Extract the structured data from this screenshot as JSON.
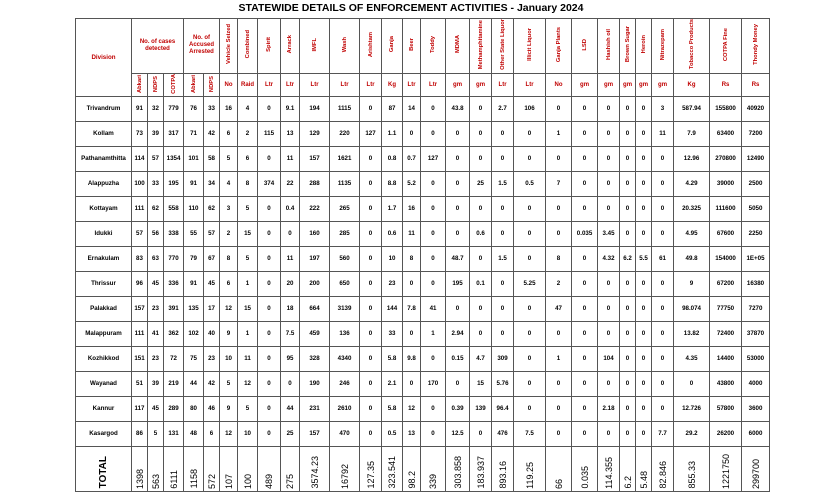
{
  "title": "STATEWIDE DETAILS OF ENFORCEMENT ACTIVITIES - January  2024",
  "headers": {
    "division": "Division",
    "cases": "No. of cases detected",
    "accused": "No. of Accused Arrested",
    "vehicle": "Vehicle Seized",
    "combined": "Combined",
    "spirit": "Spirit",
    "arrack": "Arrack",
    "imfl": "IMFL",
    "wash": "Wash",
    "arishtam": "Arishtam",
    "ganja": "Ganja",
    "beer": "Beer",
    "toddy": "Toddy",
    "mdma": "MDMA",
    "meth": "Methamphitamine",
    "otherstate": "Other State Liquor",
    "illicit": "Illicit Liquor",
    "ganjaplants": "Ganja Plants",
    "lsd": "LSD",
    "hashish": "Hashish oil",
    "brownsugar": "Brown Sugar",
    "heroin": "Heroin",
    "nitrazepam": "Nitrazepam",
    "tobacco": "Tobacco Products",
    "cotpafine": "COTPA Fine",
    "thondimoney": "Thondy Money",
    "abkari": "Abkari",
    "ndps": "NDPS",
    "cotpa": "COTPA"
  },
  "units": [
    "No",
    "Raid",
    "Ltr",
    "Ltr",
    "Ltr",
    "Ltr",
    "Ltr",
    "Kg",
    "Ltr",
    "Ltr",
    "gm",
    "gm",
    "Ltr",
    "Ltr",
    "No",
    "gm",
    "gm",
    "gm",
    "gm",
    "gm",
    "Kg",
    "Rs",
    "Rs"
  ],
  "rows": [
    {
      "division": "Trivandrum",
      "v": [
        "91",
        "32",
        "779",
        "76",
        "33",
        "16",
        "4",
        "0",
        "9.1",
        "194",
        "1115",
        "0",
        "87",
        "14",
        "0",
        "43.8",
        "0",
        "2.7",
        "106",
        "0",
        "0",
        "0",
        "0",
        "0",
        "3",
        "587.94",
        "155800",
        "40920"
      ]
    },
    {
      "division": "Kollam",
      "v": [
        "73",
        "39",
        "317",
        "71",
        "42",
        "6",
        "2",
        "115",
        "13",
        "129",
        "220",
        "127",
        "1.1",
        "0",
        "0",
        "0",
        "0",
        "0",
        "0",
        "1",
        "0",
        "0",
        "0",
        "0",
        "11",
        "7.9",
        "63400",
        "7200"
      ]
    },
    {
      "division": "Pathanamthitta",
      "v": [
        "114",
        "57",
        "1354",
        "101",
        "58",
        "5",
        "6",
        "0",
        "11",
        "157",
        "1621",
        "0",
        "0.8",
        "0.7",
        "127",
        "0",
        "0",
        "0",
        "0",
        "0",
        "0",
        "0",
        "0",
        "0",
        "0",
        "12.96",
        "270800",
        "12490"
      ]
    },
    {
      "division": "Alappuzha",
      "v": [
        "100",
        "33",
        "195",
        "91",
        "34",
        "4",
        "8",
        "374",
        "22",
        "288",
        "1135",
        "0",
        "8.8",
        "5.2",
        "0",
        "0",
        "25",
        "1.5",
        "0.5",
        "7",
        "0",
        "0",
        "0",
        "0",
        "0",
        "4.29",
        "39000",
        "2500"
      ]
    },
    {
      "division": "Kottayam",
      "v": [
        "111",
        "62",
        "558",
        "110",
        "62",
        "3",
        "5",
        "0",
        "0.4",
        "222",
        "265",
        "0",
        "1.7",
        "16",
        "0",
        "0",
        "0",
        "0",
        "0",
        "0",
        "0",
        "0",
        "0",
        "0",
        "0",
        "20.325",
        "111600",
        "5050"
      ]
    },
    {
      "division": "Idukki",
      "v": [
        "57",
        "56",
        "338",
        "55",
        "57",
        "2",
        "15",
        "0",
        "0",
        "160",
        "285",
        "0",
        "0.6",
        "11",
        "0",
        "0",
        "0.6",
        "0",
        "0",
        "0",
        "0.035",
        "3.45",
        "0",
        "0",
        "0",
        "4.95",
        "67600",
        "2250"
      ]
    },
    {
      "division": "Ernakulam",
      "v": [
        "83",
        "63",
        "770",
        "79",
        "67",
        "8",
        "5",
        "0",
        "11",
        "197",
        "560",
        "0",
        "10",
        "8",
        "0",
        "48.7",
        "0",
        "1.5",
        "0",
        "8",
        "0",
        "4.32",
        "6.2",
        "5.5",
        "61",
        "49.8",
        "154000",
        "1E+05"
      ]
    },
    {
      "division": "Thrissur",
      "v": [
        "96",
        "45",
        "336",
        "91",
        "45",
        "6",
        "1",
        "0",
        "20",
        "200",
        "650",
        "0",
        "23",
        "0",
        "0",
        "195",
        "0.1",
        "0",
        "5.25",
        "2",
        "0",
        "0",
        "0",
        "0",
        "0",
        "9",
        "67200",
        "16380"
      ]
    },
    {
      "division": "Palakkad",
      "v": [
        "157",
        "23",
        "391",
        "135",
        "17",
        "12",
        "15",
        "0",
        "18",
        "664",
        "3139",
        "0",
        "144",
        "7.8",
        "41",
        "0",
        "0",
        "0",
        "0",
        "47",
        "0",
        "0",
        "0",
        "0",
        "0",
        "98.074",
        "77750",
        "7270"
      ]
    },
    {
      "division": "Malappuram",
      "v": [
        "111",
        "41",
        "362",
        "102",
        "40",
        "9",
        "1",
        "0",
        "7.5",
        "459",
        "136",
        "0",
        "33",
        "0",
        "1",
        "2.94",
        "0",
        "0",
        "0",
        "0",
        "0",
        "0",
        "0",
        "0",
        "0",
        "13.82",
        "72400",
        "37870"
      ]
    },
    {
      "division": "Kozhikkod",
      "v": [
        "151",
        "23",
        "72",
        "75",
        "23",
        "10",
        "11",
        "0",
        "95",
        "328",
        "4340",
        "0",
        "5.8",
        "9.8",
        "0",
        "0.15",
        "4.7",
        "309",
        "0",
        "1",
        "0",
        "104",
        "0",
        "0",
        "0",
        "4.35",
        "14400",
        "53000"
      ]
    },
    {
      "division": "Wayanad",
      "v": [
        "51",
        "39",
        "219",
        "44",
        "42",
        "5",
        "12",
        "0",
        "0",
        "190",
        "246",
        "0",
        "2.1",
        "0",
        "170",
        "0",
        "15",
        "5.76",
        "0",
        "0",
        "0",
        "0",
        "0",
        "0",
        "0",
        "0",
        "43800",
        "4000"
      ]
    },
    {
      "division": "Kannur",
      "v": [
        "117",
        "45",
        "289",
        "80",
        "46",
        "9",
        "5",
        "0",
        "44",
        "231",
        "2610",
        "0",
        "5.8",
        "12",
        "0",
        "0.39",
        "139",
        "96.4",
        "0",
        "0",
        "0",
        "2.18",
        "0",
        "0",
        "0",
        "12.726",
        "57800",
        "3600"
      ]
    },
    {
      "division": "Kasargod",
      "v": [
        "86",
        "5",
        "131",
        "48",
        "6",
        "12",
        "10",
        "0",
        "25",
        "157",
        "470",
        "0",
        "0.5",
        "13",
        "0",
        "12.5",
        "0",
        "476",
        "7.5",
        "0",
        "0",
        "0",
        "0",
        "0",
        "7.7",
        "29.2",
        "26200",
        "6000"
      ]
    }
  ],
  "total": {
    "label": "TOTAL",
    "v": [
      "1398",
      "563",
      "6111",
      "1158",
      "572",
      "107",
      "100",
      "489",
      "275",
      "3574.23",
      "16792",
      "127.35",
      "323.541",
      "98.2",
      "339",
      "303.858",
      "183.937",
      "893.16",
      "119.25",
      "66",
      "0.035",
      "114.355",
      "6.2",
      "5.48",
      "82.846",
      "855.33",
      "1221750",
      "299700"
    ]
  }
}
